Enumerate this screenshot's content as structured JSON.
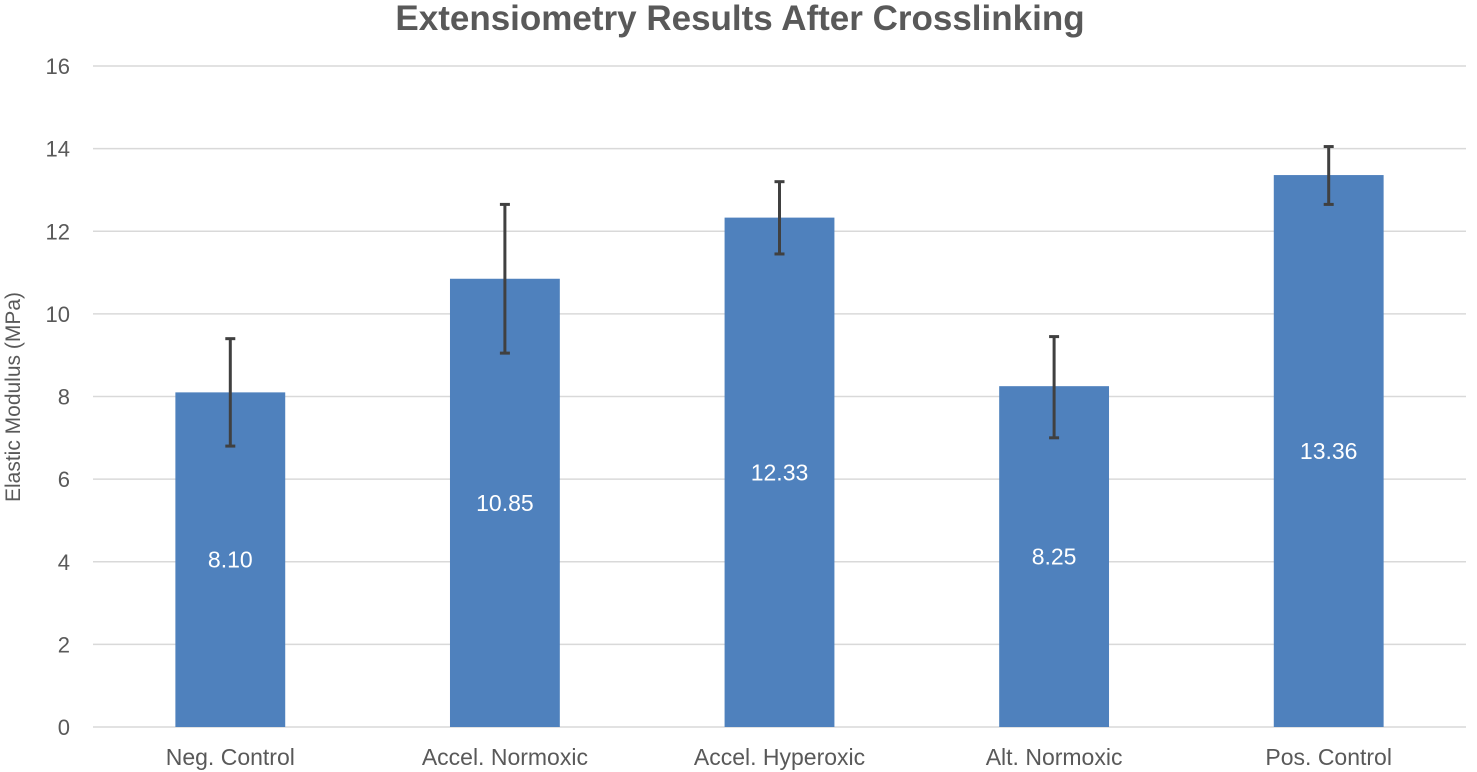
{
  "chart_data": {
    "type": "bar",
    "title": "Extensiometry Results After Crosslinking",
    "xlabel": "",
    "ylabel": "Elastic Modulus (MPa)",
    "categories": [
      "Neg. Control",
      "Accel. Normoxic",
      "Accel. Hyperoxic",
      "Alt. Normoxic",
      "Pos. Control"
    ],
    "values": [
      8.1,
      10.85,
      12.33,
      8.25,
      13.36
    ],
    "value_labels": [
      "8.10",
      "10.85",
      "12.33",
      "8.25",
      "13.36"
    ],
    "error_bars": {
      "lower": [
        6.8,
        9.05,
        11.45,
        7.0,
        12.65
      ],
      "upper": [
        9.4,
        12.65,
        13.2,
        9.45,
        14.05
      ]
    },
    "ylim": [
      0,
      16
    ],
    "yticks": [
      0,
      2,
      4,
      6,
      8,
      10,
      12,
      14,
      16
    ],
    "grid": true,
    "legend": "none",
    "colors": {
      "bar": "#4f81bd",
      "error_bar": "#404040",
      "grid": "#d9d9d9",
      "text": "#595959",
      "data_label": "#ffffff"
    }
  }
}
